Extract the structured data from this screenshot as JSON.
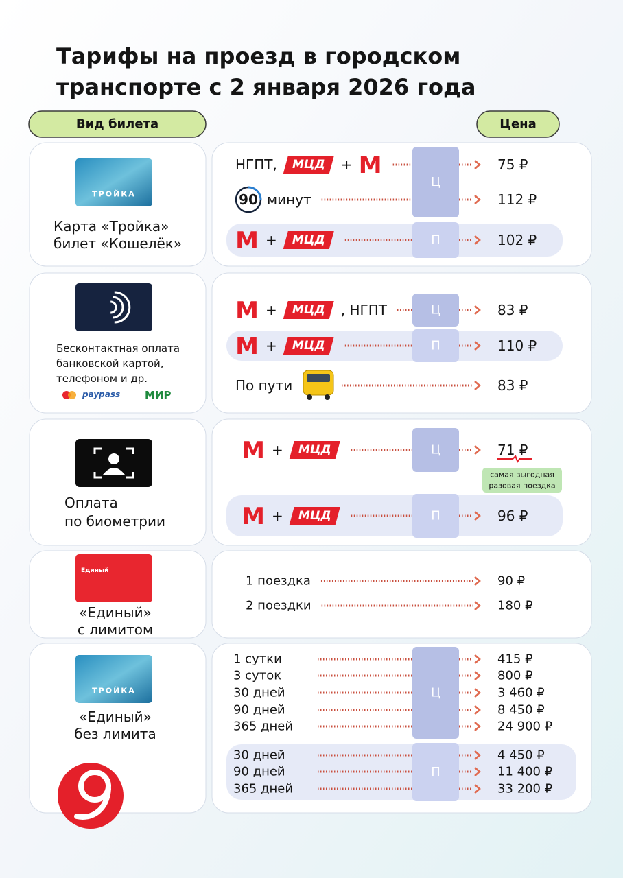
{
  "header": {
    "title_lines": [
      "Тарифы на проезд в городском",
      "транспорте с 2 января 2026 года"
    ]
  },
  "columns": {
    "ticket": "Вид билета",
    "price": "Цена"
  },
  "sections": [
    {
      "label": [
        "Карта «Тройка»",
        "билет «Кошелёк»"
      ],
      "card": "ТРОЙКА",
      "rows": [
        {
          "route": [
            {
              "text": "НГПТ,"
            },
            {
              "mcd": "МЦД"
            },
            {
              "text": "+"
            },
            {
              "metro": "М"
            }
          ],
          "zone": "Ц",
          "price": "75 ₽"
        },
        {
          "route": [
            {
              "clock": "90"
            },
            {
              "text": "минут"
            }
          ],
          "zone": "Ц",
          "price": "112 ₽"
        },
        {
          "route": [
            {
              "metro": "М"
            },
            {
              "text": "+"
            },
            {
              "mcd": "МЦД"
            }
          ],
          "zone": "П",
          "price": "102 ₽"
        }
      ]
    },
    {
      "label": [
        "Бесконтактная оплата",
        "банковской картой,",
        "телефоном и др."
      ],
      "payments": [
        "paypass",
        "МИР"
      ],
      "rows": [
        {
          "route": [
            {
              "metro": "М"
            },
            {
              "text": "+"
            },
            {
              "mcd": "МЦД"
            },
            {
              "text": ", НГПТ"
            }
          ],
          "zone": "Ц",
          "price": "83 ₽"
        },
        {
          "route": [
            {
              "metro": "М"
            },
            {
              "text": "+"
            },
            {
              "mcd": "МЦД"
            }
          ],
          "zone": "П",
          "price": "110 ₽"
        },
        {
          "route": [
            {
              "text": "По пути"
            }
          ],
          "price": "83 ₽"
        }
      ]
    },
    {
      "label": [
        "Оплата",
        "по биометрии"
      ],
      "rows": [
        {
          "route": [
            {
              "metro": "М"
            },
            {
              "text": "+"
            },
            {
              "mcd": "МЦД"
            }
          ],
          "zone": "Ц",
          "price": "71 ₽",
          "badge": [
            "самая выгодная",
            "разовая поездка"
          ]
        },
        {
          "route": [
            {
              "metro": "М"
            },
            {
              "text": "+"
            },
            {
              "mcd": "МЦД"
            }
          ],
          "zone": "П",
          "price": "96 ₽"
        }
      ]
    },
    {
      "label": [
        "«Единый»",
        "с лимитом"
      ],
      "card": "Единый",
      "rows": [
        {
          "route": [
            {
              "text": "1 поездка"
            }
          ],
          "price": "90 ₽"
        },
        {
          "route": [
            {
              "text": "2 поездки"
            }
          ],
          "price": "180 ₽"
        }
      ]
    },
    {
      "label": [
        "«Единый»",
        "без лимита"
      ],
      "card": "ТРОЙКА",
      "rows": [
        {
          "route": [
            {
              "text": "1 сутки"
            }
          ],
          "zone": "Ц",
          "price": "415 ₽"
        },
        {
          "route": [
            {
              "text": "3 суток"
            }
          ],
          "zone": "Ц",
          "price": "800 ₽"
        },
        {
          "route": [
            {
              "text": "30 дней"
            }
          ],
          "zone": "Ц",
          "price": "3 460 ₽"
        },
        {
          "route": [
            {
              "text": "90 дней"
            }
          ],
          "zone": "Ц",
          "price": "8 450 ₽"
        },
        {
          "route": [
            {
              "text": "365 дней"
            }
          ],
          "zone": "Ц",
          "price": "24 900 ₽"
        },
        {
          "route": [
            {
              "text": "30 дней"
            }
          ],
          "zone": "П",
          "price": "4 450 ₽"
        },
        {
          "route": [
            {
              "text": "90 дней"
            }
          ],
          "zone": "П",
          "price": "11 400 ₽"
        },
        {
          "route": [
            {
              "text": "365 дней"
            }
          ],
          "zone": "П",
          "price": "33 200 ₽"
        }
      ]
    }
  ]
}
